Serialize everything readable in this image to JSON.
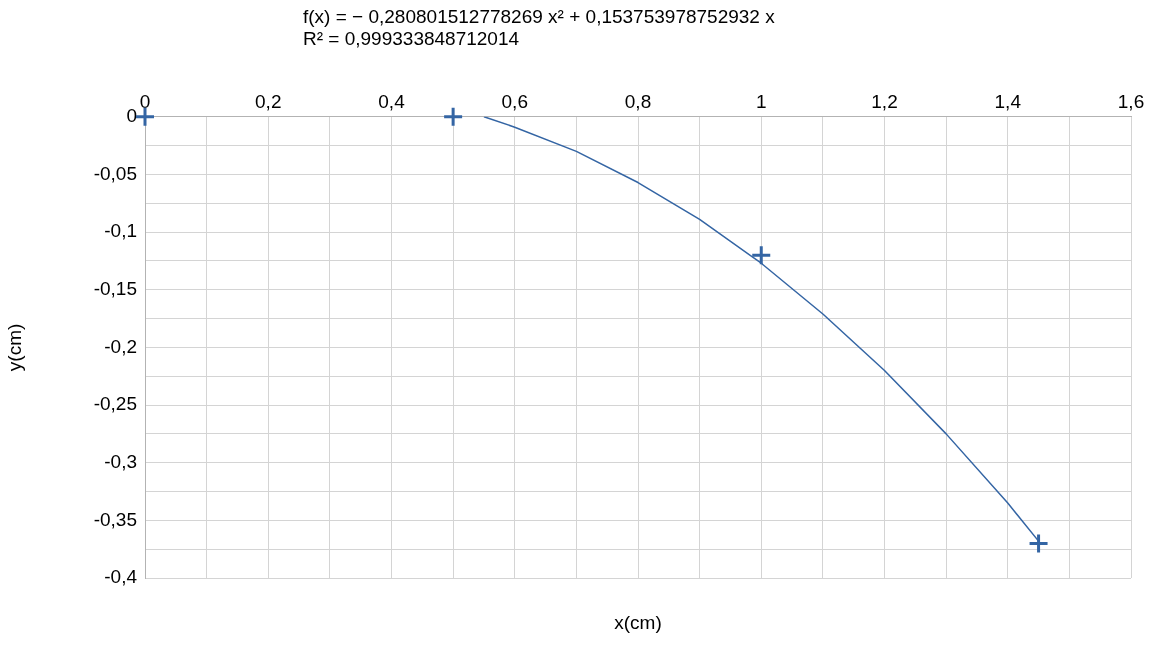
{
  "chart_data": {
    "type": "scatter",
    "annotations": [
      "f(x) = − 0,280801512778269 x² + 0,153753978752932 x",
      "R² = 0,999333848712014"
    ],
    "xlabel": "x(cm)",
    "ylabel": "y(cm)",
    "xlim": [
      0,
      1.6
    ],
    "ylim": [
      -0.4,
      0
    ],
    "xticks": [
      0,
      {
        "value": 0.1,
        "label": null
      },
      {
        "value": 0.2,
        "label": "0,2"
      },
      {
        "value": 0.3,
        "label": null
      },
      {
        "value": 0.4,
        "label": "0,4"
      },
      {
        "value": 0.5,
        "label": null
      },
      {
        "value": 0.6,
        "label": "0,6"
      },
      {
        "value": 0.7,
        "label": null
      },
      {
        "value": 0.8,
        "label": "0,8"
      },
      {
        "value": 0.9,
        "label": null
      },
      1,
      {
        "value": 1.1,
        "label": null
      },
      {
        "value": 1.2,
        "label": "1,2"
      },
      {
        "value": 1.3,
        "label": null
      },
      {
        "value": 1.4,
        "label": "1,4"
      },
      {
        "value": 1.5,
        "label": null
      },
      {
        "value": 1.6,
        "label": "1,6"
      }
    ],
    "yticks": [
      0,
      {
        "value": -0.025,
        "label": null
      },
      {
        "value": -0.05,
        "label": "-0,05"
      },
      {
        "value": -0.075,
        "label": null
      },
      {
        "value": -0.1,
        "label": "-0,1"
      },
      {
        "value": -0.125,
        "label": null
      },
      {
        "value": -0.15,
        "label": "-0,15"
      },
      {
        "value": -0.175,
        "label": null
      },
      {
        "value": -0.2,
        "label": "-0,2"
      },
      {
        "value": -0.225,
        "label": null
      },
      {
        "value": -0.25,
        "label": "-0,25"
      },
      {
        "value": -0.275,
        "label": null
      },
      {
        "value": -0.3,
        "label": "-0,3"
      },
      {
        "value": -0.325,
        "label": null
      },
      {
        "value": -0.35,
        "label": "-0,35"
      },
      {
        "value": -0.375,
        "label": null
      },
      {
        "value": -0.4,
        "label": "-0,4"
      }
    ],
    "grid": true,
    "legend": false,
    "marker": "cross",
    "series": [
      {
        "type": "line",
        "color": "#3465a4",
        "marker": "none",
        "x": [
          0.55,
          0.6,
          0.7,
          0.8,
          0.9,
          1.0,
          1.1,
          1.2,
          1.3,
          1.4,
          1.45
        ],
        "values": [
          0,
          -0.009,
          -0.03,
          -0.057,
          -0.089,
          -0.127,
          -0.171,
          -0.22,
          -0.275,
          -0.335,
          -0.368
        ]
      },
      {
        "color": "#3465a4",
        "x": [
          0,
          0.5,
          1,
          1.45
        ],
        "values": [
          0,
          0,
          -0.12,
          -0.37
        ]
      }
    ]
  }
}
